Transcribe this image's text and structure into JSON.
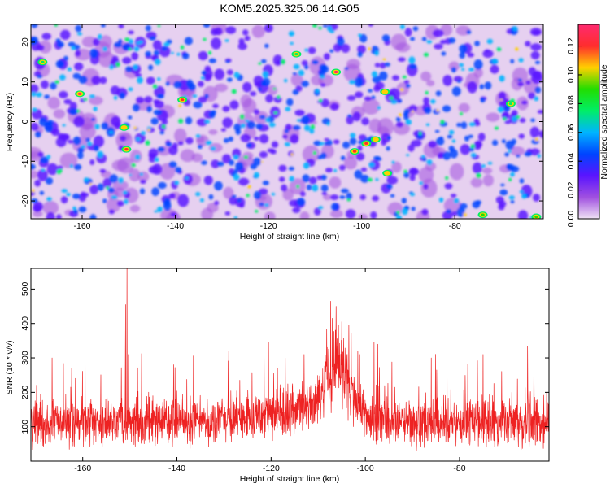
{
  "title": "KOM5.2025.325.06.14.G05",
  "colors": {
    "series": "#ee2222",
    "colormap": [
      "#f0e2f4",
      "#a050e0",
      "#5a14ff",
      "#0044ff",
      "#00b4ff",
      "#00ee66",
      "#22dd00",
      "#ffd000",
      "#ff2d2d",
      "#ff2a70"
    ]
  },
  "chart_data": [
    {
      "type": "heatmap",
      "title": "KOM5.2025.325.06.14.G05",
      "xlabel": "Height of straight line (km)",
      "ylabel": "Frequency (Hz)",
      "xlim": [
        -171,
        -61
      ],
      "ylim": [
        -24.5,
        24.5
      ],
      "xticks": [
        -160,
        -140,
        -120,
        -100,
        -80
      ],
      "xtick_labels": [
        "-160",
        "-140",
        "-120",
        "-100",
        "-80"
      ],
      "yticks": [
        -20,
        -10,
        0,
        10,
        20
      ],
      "ytick_labels": [
        "-20",
        "-10",
        "0",
        "10",
        "20"
      ],
      "colorbar": {
        "label": "Normalized spectral amplitude",
        "range": [
          0,
          0.135
        ],
        "ticks": [
          0.0,
          0.02,
          0.04,
          0.06,
          0.08,
          0.1,
          0.12
        ],
        "tick_labels": [
          "0.00",
          "0.02",
          "0.04",
          "0.06",
          "0.08",
          "0.10",
          "0.12"
        ]
      },
      "hotspots": [
        {
          "x": -160.5,
          "y": 7,
          "value": 0.13
        },
        {
          "x": -150.5,
          "y": -7,
          "value": 0.12
        },
        {
          "x": -151,
          "y": -1.5,
          "value": 0.11
        },
        {
          "x": -138.5,
          "y": 5.5,
          "value": 0.12
        },
        {
          "x": -105.5,
          "y": 12.5,
          "value": 0.13
        },
        {
          "x": -101.5,
          "y": -7.5,
          "value": 0.12
        },
        {
          "x": -99,
          "y": -5.5,
          "value": 0.12
        },
        {
          "x": -97,
          "y": -4.5,
          "value": 0.11
        },
        {
          "x": -95,
          "y": 7.5,
          "value": 0.1
        },
        {
          "x": -94.5,
          "y": -13,
          "value": 0.11
        },
        {
          "x": -74,
          "y": -23.5,
          "value": 0.09
        },
        {
          "x": -68,
          "y": 4.5,
          "value": 0.08
        },
        {
          "x": -62.5,
          "y": -24,
          "value": 0.09
        },
        {
          "x": -168.5,
          "y": 15,
          "value": 0.07
        },
        {
          "x": -114,
          "y": 17,
          "value": 0.08
        }
      ]
    },
    {
      "type": "line",
      "xlabel": "Height of straight line (km)",
      "ylabel": "SNR (10 * v/v)",
      "xlim": [
        -171,
        -61
      ],
      "ylim": [
        0,
        560
      ],
      "xticks": [
        -160,
        -140,
        -120,
        -100,
        -80
      ],
      "xtick_labels": [
        "-160",
        "-140",
        "-120",
        "-100",
        "-80"
      ],
      "yticks": [
        100,
        200,
        300,
        400,
        500
      ],
      "ytick_labels": [
        "100",
        "200",
        "300",
        "400",
        "500"
      ],
      "x_step": 0.05,
      "baseline": {
        "mean": 115,
        "spread": 45,
        "typical_max": 300
      },
      "enhancements": [
        {
          "center": -106,
          "width": 3.5,
          "peak": 180
        },
        {
          "center": -112,
          "width": 12,
          "peak": 40
        }
      ],
      "spikes": [
        {
          "x": -150.6,
          "y": 560
        },
        {
          "x": -150.9,
          "y": 455
        },
        {
          "x": -151.2,
          "y": 380
        },
        {
          "x": -150.3,
          "y": 310
        },
        {
          "x": -106.2,
          "y": 450
        },
        {
          "x": -107.0,
          "y": 415
        },
        {
          "x": -105.0,
          "y": 405
        },
        {
          "x": -103.5,
          "y": 395
        },
        {
          "x": -159.5,
          "y": 330
        },
        {
          "x": -129.0,
          "y": 320
        },
        {
          "x": -113.0,
          "y": 310
        },
        {
          "x": -75.0,
          "y": 310
        },
        {
          "x": -166.5,
          "y": 300
        },
        {
          "x": -117.0,
          "y": 300
        },
        {
          "x": -86.0,
          "y": 300
        }
      ]
    }
  ]
}
